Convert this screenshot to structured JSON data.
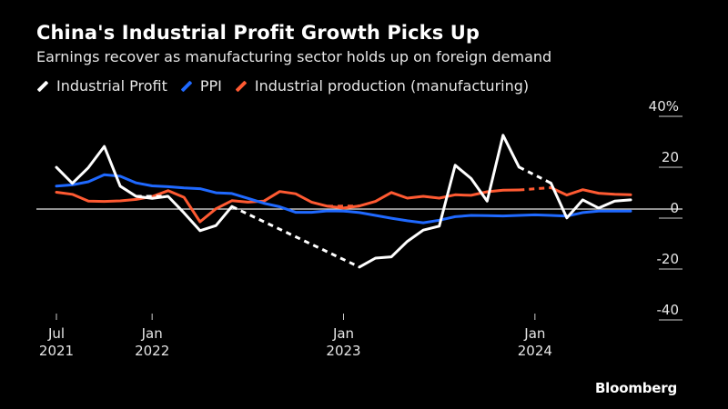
{
  "chart_data": {
    "type": "line",
    "title": "China's Industrial Profit Growth Picks Up",
    "subtitle": "Earnings recover as manufacturing sector holds up on foreign demand",
    "ylim": [
      -40,
      40
    ],
    "y_ticks": [
      {
        "value": 40,
        "label": "40%"
      },
      {
        "value": 20,
        "label": "20"
      },
      {
        "value": 0,
        "label": "0"
      },
      {
        "value": -20,
        "label": "-20"
      },
      {
        "value": -40,
        "label": "-40"
      }
    ],
    "x_ticks": [
      {
        "month": 0,
        "line1": "Jul",
        "line2": "2021"
      },
      {
        "month": 6,
        "line1": "Jan",
        "line2": "2022"
      },
      {
        "month": 18,
        "line1": "Jan",
        "line2": ""
      },
      {
        "month": 18,
        "line1": "",
        "line2": "2023"
      },
      {
        "month": 30,
        "line1": "Jan",
        "line2": ""
      },
      {
        "month": 30,
        "line1": "",
        "line2": "2024"
      }
    ],
    "x_range": [
      0,
      36
    ],
    "series": [
      {
        "name": "Industrial Profit",
        "color": "#ffffff",
        "points": [
          [
            0,
            16.4
          ],
          [
            1,
            10.1
          ],
          [
            2,
            16.3
          ],
          [
            3,
            24.6
          ],
          [
            4,
            9.0
          ],
          [
            5,
            5.0
          ],
          [
            6,
            4.2
          ],
          [
            7,
            5.0
          ],
          [
            8,
            -1.5
          ],
          [
            9,
            -8.5
          ],
          [
            10,
            -6.5
          ],
          [
            11,
            1.0
          ],
          [
            19,
            -22.8
          ],
          [
            20,
            -19.3
          ],
          [
            21,
            -18.8
          ],
          [
            22,
            -12.7
          ],
          [
            23,
            -8.3
          ],
          [
            24,
            -6.7
          ],
          [
            25,
            17.2
          ],
          [
            26,
            12.0
          ],
          [
            27,
            3.1
          ],
          [
            28,
            29.0
          ],
          [
            29,
            16.5
          ],
          [
            31,
            10.2
          ],
          [
            32,
            -3.5
          ],
          [
            33,
            3.6
          ],
          [
            34,
            0.4
          ],
          [
            35,
            3.1
          ],
          [
            36,
            3.6
          ]
        ],
        "gaps": [
          [
            5,
            7
          ],
          [
            11,
            19
          ],
          [
            29,
            31
          ]
        ]
      },
      {
        "name": "PPI",
        "color": "#1f69ff",
        "points": [
          [
            0,
            9.0
          ],
          [
            1,
            9.5
          ],
          [
            2,
            10.7
          ],
          [
            3,
            13.5
          ],
          [
            4,
            12.9
          ],
          [
            5,
            10.3
          ],
          [
            6,
            9.1
          ],
          [
            7,
            8.8
          ],
          [
            8,
            8.3
          ],
          [
            9,
            8.0
          ],
          [
            10,
            6.4
          ],
          [
            11,
            6.1
          ],
          [
            12,
            4.2
          ],
          [
            13,
            2.3
          ],
          [
            14,
            0.9
          ],
          [
            15,
            -1.3
          ],
          [
            16,
            -1.3
          ],
          [
            17,
            -0.7
          ],
          [
            18,
            -0.8
          ],
          [
            19,
            -1.4
          ],
          [
            20,
            -2.5
          ],
          [
            21,
            -3.6
          ],
          [
            22,
            -4.6
          ],
          [
            23,
            -5.4
          ],
          [
            24,
            -4.4
          ],
          [
            25,
            -3.0
          ],
          [
            26,
            -2.5
          ],
          [
            27,
            -2.6
          ],
          [
            28,
            -2.7
          ],
          [
            29,
            -2.5
          ],
          [
            30,
            -2.3
          ],
          [
            31,
            -2.5
          ],
          [
            32,
            -2.8
          ],
          [
            33,
            -1.4
          ],
          [
            34,
            -0.8
          ],
          [
            35,
            -0.8
          ],
          [
            36,
            -0.8
          ]
        ],
        "gaps": []
      },
      {
        "name": "Industrial production (manufacturing)",
        "color": "#ff5a32",
        "points": [
          [
            0,
            6.6
          ],
          [
            1,
            5.8
          ],
          [
            2,
            3.1
          ],
          [
            3,
            3.0
          ],
          [
            4,
            3.2
          ],
          [
            5,
            3.8
          ],
          [
            6,
            4.9
          ],
          [
            7,
            7.2
          ],
          [
            8,
            4.6
          ],
          [
            9,
            -5.0
          ],
          [
            10,
            0.1
          ],
          [
            11,
            3.3
          ],
          [
            12,
            2.7
          ],
          [
            13,
            3.1
          ],
          [
            14,
            6.9
          ],
          [
            15,
            6.0
          ],
          [
            16,
            2.7
          ],
          [
            17,
            1.1
          ],
          [
            18,
            0.4
          ],
          [
            19,
            1.2
          ],
          [
            20,
            3.0
          ],
          [
            21,
            6.5
          ],
          [
            22,
            4.3
          ],
          [
            23,
            5.0
          ],
          [
            24,
            4.3
          ],
          [
            25,
            5.6
          ],
          [
            26,
            5.4
          ],
          [
            27,
            6.8
          ],
          [
            28,
            7.4
          ],
          [
            29,
            7.5
          ],
          [
            31,
            8.4
          ],
          [
            32,
            5.5
          ],
          [
            33,
            7.6
          ],
          [
            34,
            6.2
          ],
          [
            35,
            5.8
          ],
          [
            36,
            5.6
          ]
        ],
        "gaps": [
          [
            17,
            19
          ],
          [
            29,
            31
          ]
        ]
      }
    ],
    "legend": [
      "Industrial Profit",
      "PPI",
      "Industrial production (manufacturing)"
    ]
  },
  "footer": {
    "brand": "Bloomberg"
  }
}
